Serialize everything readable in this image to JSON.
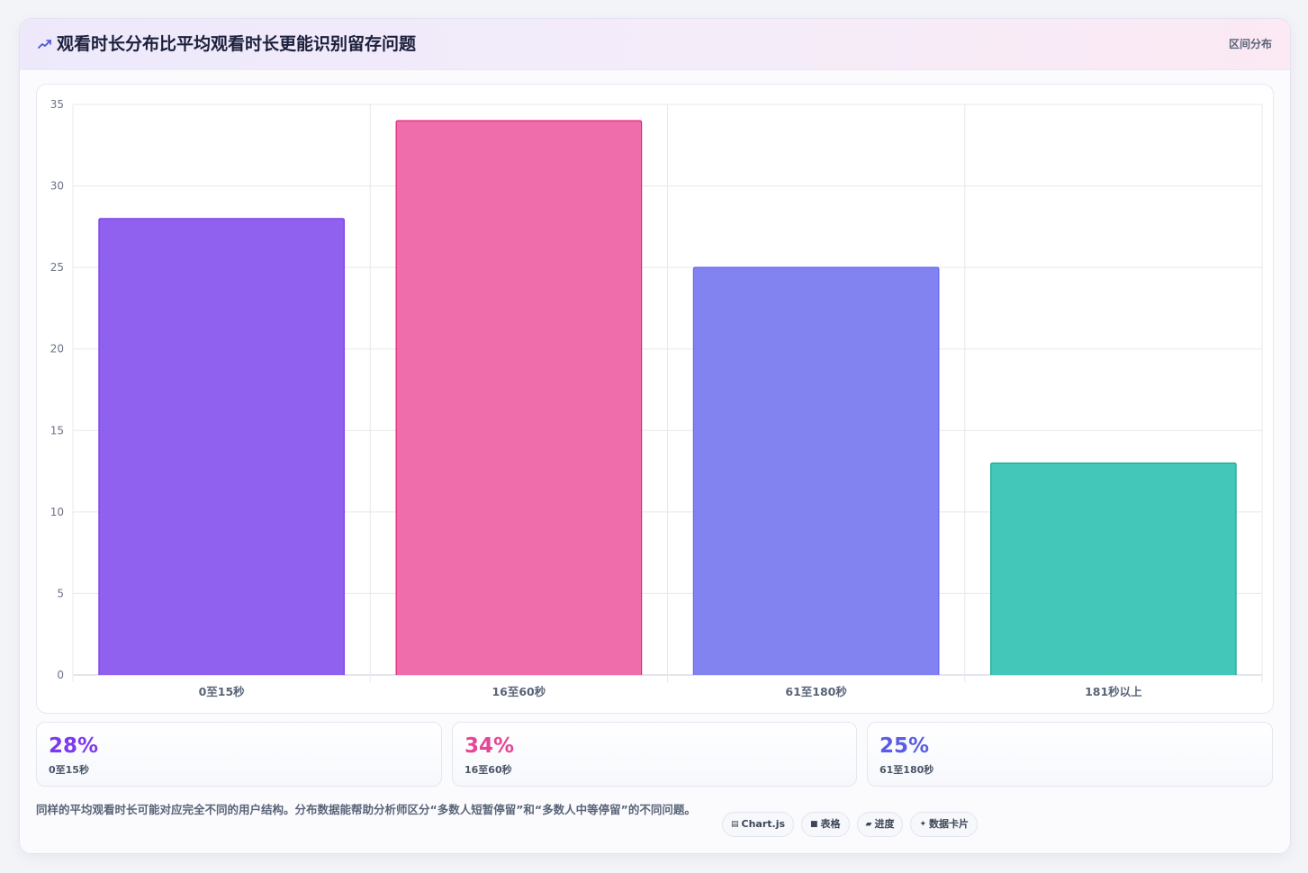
{
  "header": {
    "title": "观看时长分布比平均观看时长更能识别留存问题",
    "badge": "区间分布",
    "icon": "trend-line-icon"
  },
  "chart_data": {
    "type": "bar",
    "categories": [
      "0至15秒",
      "16至60秒",
      "61至180秒",
      "181秒以上"
    ],
    "values": [
      28,
      34,
      25,
      13
    ],
    "colors": [
      "#9061ef",
      "#f06dab",
      "#8283f1",
      "#43c7b8"
    ],
    "border_colors": [
      "#7c3aed",
      "#db2777",
      "#6366f1",
      "#14a895"
    ],
    "ylim": [
      0,
      35
    ],
    "yticks": [
      0,
      5,
      10,
      15,
      20,
      25,
      30,
      35
    ],
    "grid": true,
    "legend": "none"
  },
  "stats": [
    {
      "value": "28%",
      "label": "0至15秒",
      "color": "#7c3aed"
    },
    {
      "value": "34%",
      "label": "16至60秒",
      "color": "#e64596"
    },
    {
      "value": "25%",
      "label": "61至180秒",
      "color": "#5b5ce6"
    }
  ],
  "footer": {
    "text": "同样的平均观看时长可能对应完全不同的用户结构。分布数据能帮助分析师区分“多数人短暂停留”和“多数人中等停留”的不同问题。"
  },
  "tags": [
    {
      "icon": "chart-icon",
      "glyph": "▤",
      "label": "Chart.js"
    },
    {
      "icon": "table-icon",
      "glyph": "■",
      "label": "表格"
    },
    {
      "icon": "progress-icon",
      "glyph": "▰",
      "label": "进度"
    },
    {
      "icon": "sparkle-icon",
      "glyph": "✦",
      "label": "数据卡片"
    }
  ]
}
